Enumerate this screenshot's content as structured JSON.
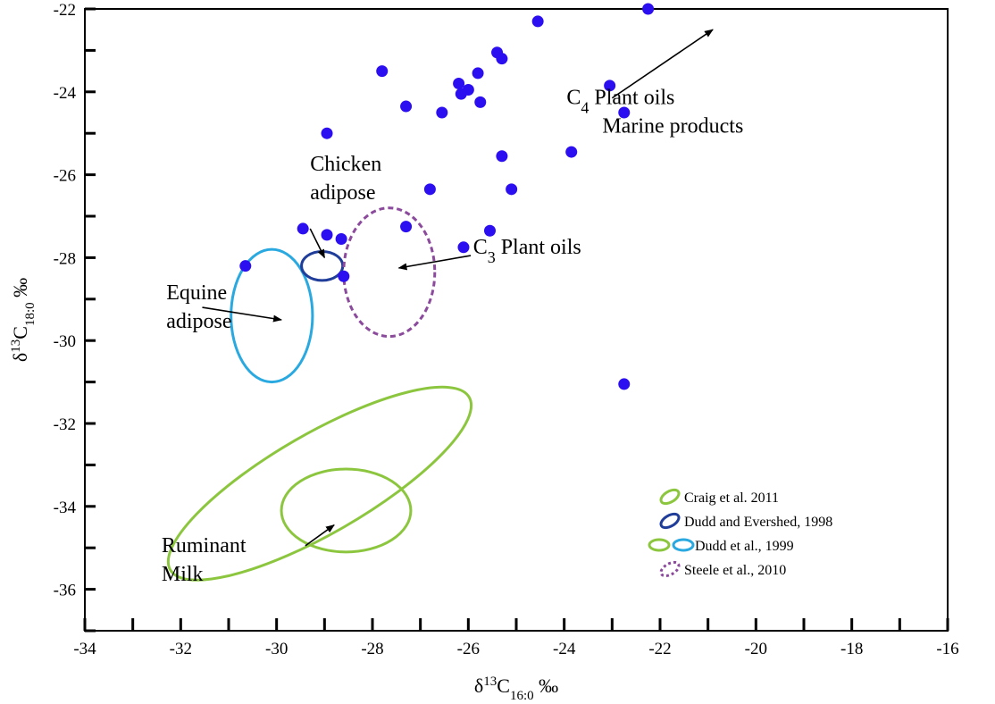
{
  "chart_data": {
    "type": "scatter",
    "xlabel": {
      "prefix": "δ",
      "sup": "13",
      "base": "C",
      "sub": "16:0",
      "suffix": " ‰"
    },
    "ylabel": {
      "prefix": "δ",
      "sup": "13",
      "base": "C",
      "sub": "18:0",
      "suffix": " ‰"
    },
    "xlim": [
      -34,
      -16
    ],
    "ylim": [
      -37,
      -22
    ],
    "x_ticks": [
      -34,
      -32,
      -30,
      -28,
      -26,
      -24,
      -22,
      -20,
      -18,
      -16
    ],
    "y_ticks": [
      -36,
      -34,
      -32,
      -30,
      -28,
      -26,
      -24,
      -22
    ],
    "grid": false,
    "point_color": "#2b0ff0",
    "points": [
      {
        "x": -22.25,
        "y": -22.0
      },
      {
        "x": -24.55,
        "y": -22.3
      },
      {
        "x": -25.4,
        "y": -23.05
      },
      {
        "x": -25.3,
        "y": -23.2
      },
      {
        "x": -27.8,
        "y": -23.5
      },
      {
        "x": -25.8,
        "y": -23.55
      },
      {
        "x": -26.2,
        "y": -23.8
      },
      {
        "x": -26.0,
        "y": -23.95
      },
      {
        "x": -26.15,
        "y": -24.05
      },
      {
        "x": -23.05,
        "y": -23.85
      },
      {
        "x": -22.75,
        "y": -24.5
      },
      {
        "x": -25.75,
        "y": -24.25
      },
      {
        "x": -27.3,
        "y": -24.35
      },
      {
        "x": -26.55,
        "y": -24.5
      },
      {
        "x": -28.95,
        "y": -25.0
      },
      {
        "x": -23.85,
        "y": -25.45
      },
      {
        "x": -25.3,
        "y": -25.55
      },
      {
        "x": -26.8,
        "y": -26.35
      },
      {
        "x": -25.1,
        "y": -26.35
      },
      {
        "x": -27.3,
        "y": -27.25
      },
      {
        "x": -29.45,
        "y": -27.3
      },
      {
        "x": -28.95,
        "y": -27.45
      },
      {
        "x": -28.65,
        "y": -27.55
      },
      {
        "x": -25.55,
        "y": -27.35
      },
      {
        "x": -26.1,
        "y": -27.75
      },
      {
        "x": -30.65,
        "y": -28.2
      },
      {
        "x": -28.6,
        "y": -28.45
      },
      {
        "x": -22.75,
        "y": -31.05
      }
    ],
    "ellipses": [
      {
        "name": "ruminant-milk-outer",
        "cx": -29.1,
        "cy": -33.45,
        "rx": 3.6,
        "ry": 1.2,
        "angle_deg": -30,
        "color": "#8cc63f",
        "dashed": false
      },
      {
        "name": "ruminant-milk-inner",
        "cx": -28.55,
        "cy": -34.1,
        "rx": 1.35,
        "ry": 1.0,
        "angle_deg": 0,
        "color": "#8cc63f",
        "dashed": false
      },
      {
        "name": "equine-adipose",
        "cx": -30.1,
        "cy": -29.4,
        "rx": 0.85,
        "ry": 1.6,
        "angle_deg": 0,
        "color": "#29a9e0",
        "dashed": false
      },
      {
        "name": "chicken-adipose",
        "cx": -29.05,
        "cy": -28.2,
        "rx": 0.43,
        "ry": 0.35,
        "angle_deg": 0,
        "color": "#1f3d99",
        "dashed": false
      },
      {
        "name": "c3-plant-oils",
        "cx": -27.65,
        "cy": -28.35,
        "rx": 0.95,
        "ry": 1.55,
        "angle_deg": 0,
        "color": "#8b4a9c",
        "dashed": true
      }
    ],
    "annotations": [
      {
        "name": "c4-marine-label",
        "lines": [
          "Plant oils",
          "Marine products"
        ],
        "prefix_c": "C",
        "prefix_sub": "4",
        "x": -23.95,
        "y": -24.3,
        "arrow_from": [
          -23.0,
          -24.15
        ],
        "arrow_to": [
          -20.9,
          -22.5
        ]
      },
      {
        "name": "c3-label",
        "lines": [
          "Plant oils"
        ],
        "prefix_c": "C",
        "prefix_sub": "3",
        "x": -25.9,
        "y": -27.9,
        "arrow_from": [
          -25.95,
          -27.95
        ],
        "arrow_to": [
          -27.45,
          -28.25
        ]
      },
      {
        "name": "chicken-label",
        "lines": [
          "Chicken",
          "adipose"
        ],
        "x": -29.3,
        "y": -25.9,
        "arrow_from": [
          -29.3,
          -27.3
        ],
        "arrow_to": [
          -29.0,
          -28.0
        ]
      },
      {
        "name": "equine-label",
        "lines": [
          "Equine",
          "adipose"
        ],
        "x": -32.3,
        "y": -29.0,
        "arrow_from": [
          -31.55,
          -29.2
        ],
        "arrow_to": [
          -29.9,
          -29.5
        ]
      },
      {
        "name": "ruminant-label",
        "lines": [
          "Ruminant",
          "Milk"
        ],
        "x": -32.4,
        "y": -35.1,
        "arrow_from": [
          -29.4,
          -34.95
        ],
        "arrow_to": [
          -28.8,
          -34.45
        ]
      }
    ],
    "legend": {
      "position": "bottom-right",
      "entries": [
        {
          "label": "Craig et al. 2011",
          "colors": [
            "#8cc63f"
          ],
          "dashed": false
        },
        {
          "label": "Dudd and Evershed, 1998",
          "colors": [
            "#1f3d99"
          ],
          "dashed": false
        },
        {
          "label": "Dudd et al., 1999",
          "colors": [
            "#8cc63f",
            "#29a9e0"
          ],
          "dashed": false
        },
        {
          "label": "Steele et al., 2010",
          "colors": [
            "#8b4a9c"
          ],
          "dashed": true
        }
      ]
    }
  }
}
